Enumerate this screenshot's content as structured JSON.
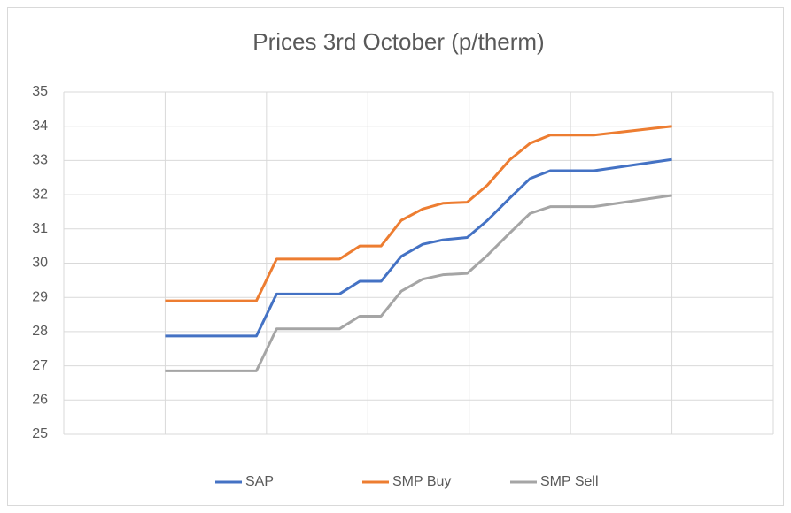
{
  "chart_data": {
    "type": "line",
    "title": "Prices 3rd October (p/therm)",
    "x": [
      1,
      1.9,
      2.1,
      2.72,
      2.92,
      3.13,
      3.33,
      3.54,
      3.74,
      3.98,
      4.18,
      4.4,
      4.6,
      4.8,
      5.23,
      6
    ],
    "xlim": [
      0,
      7
    ],
    "xticks": [
      0,
      1,
      2,
      3,
      4,
      5,
      6,
      7
    ],
    "ylim": [
      25,
      35
    ],
    "yticks": [
      25,
      26,
      27,
      28,
      29,
      30,
      31,
      32,
      33,
      34,
      35
    ],
    "grid": true,
    "legend": "bottom",
    "series": [
      {
        "name": "SAP",
        "color": "#4472c4",
        "values": [
          27.87,
          27.87,
          29.1,
          29.1,
          29.47,
          29.47,
          30.2,
          30.55,
          30.68,
          30.75,
          31.25,
          31.9,
          32.47,
          32.7,
          32.7,
          33.03
        ]
      },
      {
        "name": "SMP Buy",
        "color": "#ed7d31",
        "values": [
          28.9,
          28.9,
          30.12,
          30.12,
          30.5,
          30.5,
          31.25,
          31.58,
          31.75,
          31.78,
          32.28,
          33.02,
          33.5,
          33.74,
          33.74,
          34.0
        ]
      },
      {
        "name": "SMP Sell",
        "color": "#a5a5a5",
        "values": [
          26.85,
          26.85,
          28.08,
          28.08,
          28.45,
          28.45,
          29.18,
          29.53,
          29.66,
          29.7,
          30.23,
          30.88,
          31.45,
          31.65,
          31.65,
          31.98
        ]
      }
    ]
  }
}
